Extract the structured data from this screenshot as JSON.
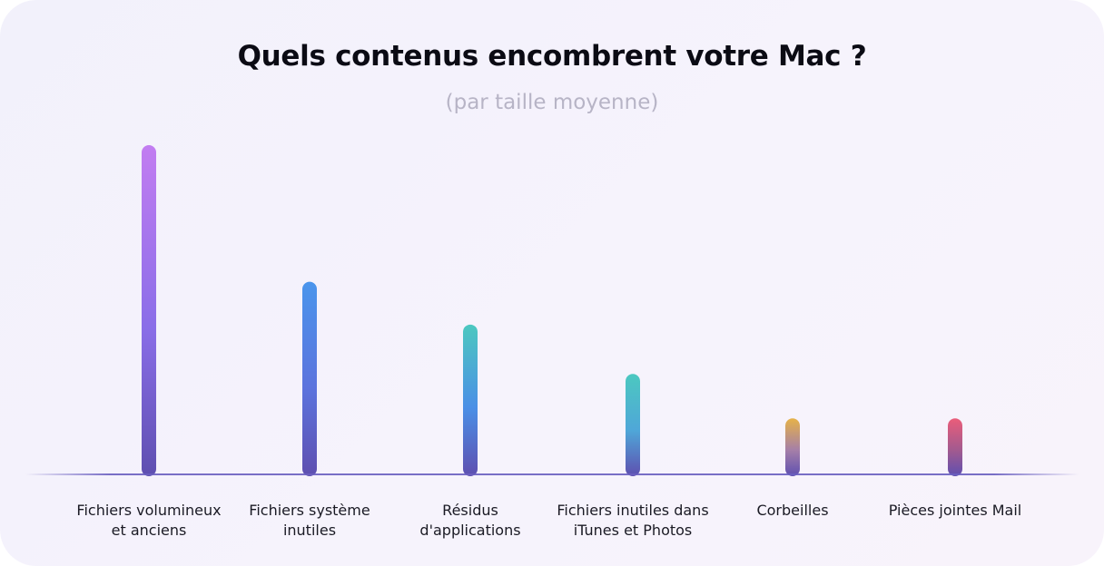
{
  "chart_data": {
    "type": "bar",
    "title": "Quels contenus encombrent votre Mac ?",
    "subtitle": "(par taille moyenne)",
    "categories": [
      [
        "Fichiers volumineux",
        "et anciens"
      ],
      [
        "Fichiers système",
        "inutiles"
      ],
      [
        "Résidus",
        "d'applications"
      ],
      [
        "Fichiers inutiles dans",
        "iTunes et Photos"
      ],
      [
        "Corbeilles"
      ],
      [
        "Pièces jointes Mail"
      ]
    ],
    "values": [
      100,
      58.5,
      45.5,
      30.5,
      17,
      17
    ],
    "ylim": [
      0,
      100
    ],
    "grid": false,
    "colors": [
      [
        "#c27df1",
        "#8a6ee8",
        "#5e4fb0"
      ],
      [
        "#4a95ec",
        "#5c73dd",
        "#5e4fb0"
      ],
      [
        "#4cc8c0",
        "#4b8fe6",
        "#5e4fb0"
      ],
      [
        "#4cc8c0",
        "#4fa7d8",
        "#5e4fb0"
      ],
      [
        "#e6b248",
        "#a57fa8",
        "#5e4fb0"
      ],
      [
        "#ea5d7a",
        "#a25a8f",
        "#5e4fb0"
      ]
    ]
  }
}
